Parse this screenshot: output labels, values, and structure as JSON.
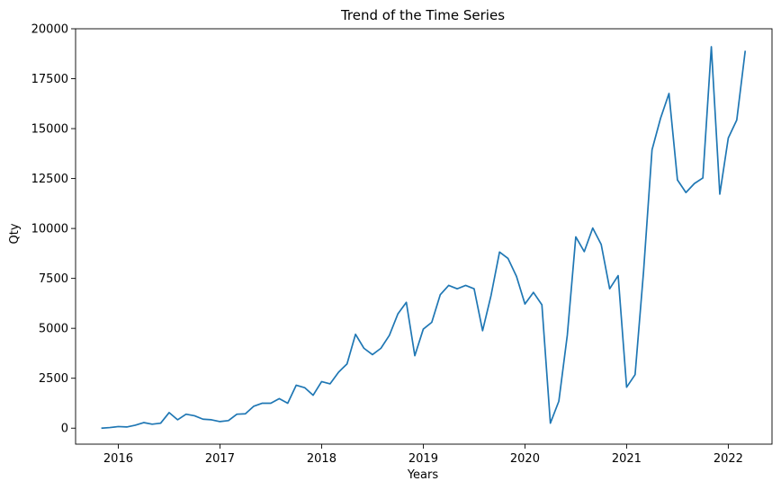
{
  "chart_data": {
    "type": "line",
    "title": "Trend of the Time Series",
    "xlabel": "Years",
    "ylabel": "Qty",
    "xlim": [
      2015.58,
      2022.43
    ],
    "ylim": [
      -800,
      20000
    ],
    "x_ticks": [
      {
        "value": 2016,
        "label": "2016"
      },
      {
        "value": 2017,
        "label": "2017"
      },
      {
        "value": 2018,
        "label": "2018"
      },
      {
        "value": 2019,
        "label": "2019"
      },
      {
        "value": 2020,
        "label": "2020"
      },
      {
        "value": 2021,
        "label": "2021"
      },
      {
        "value": 2022,
        "label": "2022"
      }
    ],
    "y_ticks": [
      {
        "value": 0,
        "label": "0"
      },
      {
        "value": 2500,
        "label": "2500"
      },
      {
        "value": 5000,
        "label": "5000"
      },
      {
        "value": 7500,
        "label": "7500"
      },
      {
        "value": 10000,
        "label": "10000"
      },
      {
        "value": 12500,
        "label": "12500"
      },
      {
        "value": 15000,
        "label": "15000"
      },
      {
        "value": 17500,
        "label": "17500"
      },
      {
        "value": 20000,
        "label": "20000"
      }
    ],
    "grid": false,
    "line_color": "#1f77b4",
    "series": [
      {
        "x": [
          "2015-11",
          "2015-12",
          "2016-01",
          "2016-02",
          "2016-03",
          "2016-04",
          "2016-05",
          "2016-06",
          "2016-07",
          "2016-08",
          "2016-09",
          "2016-10",
          "2016-11",
          "2016-12",
          "2017-01",
          "2017-02",
          "2017-03",
          "2017-04",
          "2017-05",
          "2017-06",
          "2017-07",
          "2017-08",
          "2017-09",
          "2017-10",
          "2017-11",
          "2017-12",
          "2018-01",
          "2018-02",
          "2018-03",
          "2018-04",
          "2018-05",
          "2018-06",
          "2018-07",
          "2018-08",
          "2018-09",
          "2018-10",
          "2018-11",
          "2018-12",
          "2019-01",
          "2019-02",
          "2019-03",
          "2019-04",
          "2019-05",
          "2019-06",
          "2019-07",
          "2019-08",
          "2019-09",
          "2019-10",
          "2019-11",
          "2019-12",
          "2020-01",
          "2020-02",
          "2020-03",
          "2020-04",
          "2020-05",
          "2020-06",
          "2020-07",
          "2020-08",
          "2020-09",
          "2020-10",
          "2020-11",
          "2020-12",
          "2021-01",
          "2021-02",
          "2021-03",
          "2021-04",
          "2021-05",
          "2021-06",
          "2021-07",
          "2021-08",
          "2021-09",
          "2021-10",
          "2021-11",
          "2021-12",
          "2022-01",
          "2022-02",
          "2022-03"
        ],
        "values": [
          0,
          30,
          80,
          60,
          150,
          280,
          200,
          250,
          780,
          420,
          700,
          620,
          450,
          420,
          330,
          380,
          700,
          720,
          1100,
          1250,
          1250,
          1480,
          1250,
          2150,
          2030,
          1650,
          2330,
          2220,
          2800,
          3220,
          4700,
          4000,
          3680,
          4000,
          4650,
          5720,
          6300,
          3630,
          4960,
          5300,
          6680,
          7150,
          6980,
          7150,
          6980,
          4880,
          6650,
          8820,
          8500,
          7600,
          6220,
          6800,
          6180,
          250,
          1350,
          4660,
          9580,
          8840,
          10020,
          9200,
          6980,
          7640,
          2050,
          2680,
          7850,
          13940,
          15510,
          16760,
          12430,
          11800,
          12250,
          12530,
          19100,
          11720,
          14530,
          15430,
          18900
        ]
      }
    ]
  }
}
